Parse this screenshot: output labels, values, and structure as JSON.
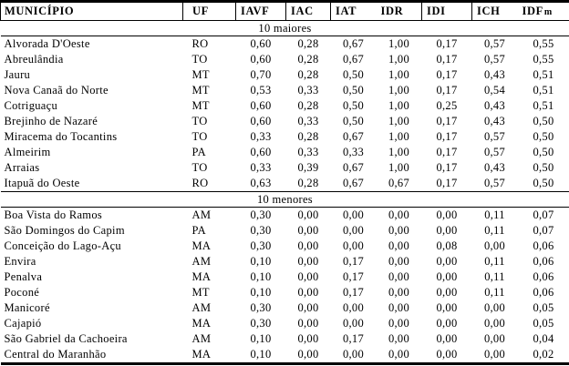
{
  "table": {
    "columns": [
      {
        "label": "MUNICÍPIO"
      },
      {
        "label": "UF"
      },
      {
        "label": "IAVF"
      },
      {
        "label": "IAC"
      },
      {
        "label": "IAT"
      },
      {
        "label": "IDR"
      },
      {
        "label": "IDI"
      },
      {
        "label": "ICH"
      },
      {
        "label": "IDF",
        "sub": "m"
      }
    ],
    "sections": [
      {
        "title": "10 maiores",
        "rows": [
          [
            "Alvorada D'Oeste",
            "RO",
            "0,60",
            "0,28",
            "0,67",
            "1,00",
            "0,17",
            "0,57",
            "0,55"
          ],
          [
            "Abreulândia",
            "TO",
            "0,60",
            "0,28",
            "0,67",
            "1,00",
            "0,17",
            "0,57",
            "0,55"
          ],
          [
            "Jauru",
            "MT",
            "0,70",
            "0,28",
            "0,50",
            "1,00",
            "0,17",
            "0,43",
            "0,51"
          ],
          [
            "Nova Canaã do Norte",
            "MT",
            "0,53",
            "0,33",
            "0,50",
            "1,00",
            "0,17",
            "0,54",
            "0,51"
          ],
          [
            "Cotriguaçu",
            "MT",
            "0,60",
            "0,28",
            "0,50",
            "1,00",
            "0,25",
            "0,43",
            "0,51"
          ],
          [
            "Brejinho de Nazaré",
            "TO",
            "0,60",
            "0,33",
            "0,50",
            "1,00",
            "0,17",
            "0,43",
            "0,50"
          ],
          [
            "Miracema do Tocantins",
            "TO",
            "0,33",
            "0,28",
            "0,67",
            "1,00",
            "0,17",
            "0,57",
            "0,50"
          ],
          [
            "Almeirim",
            "PA",
            "0,60",
            "0,33",
            "0,33",
            "1,00",
            "0,17",
            "0,57",
            "0,50"
          ],
          [
            "Arraias",
            "TO",
            "0,33",
            "0,39",
            "0,67",
            "1,00",
            "0,17",
            "0,43",
            "0,50"
          ],
          [
            "Itapuã do Oeste",
            "RO",
            "0,63",
            "0,28",
            "0,67",
            "0,67",
            "0,17",
            "0,57",
            "0,50"
          ]
        ]
      },
      {
        "title": "10 menores",
        "rows": [
          [
            "Boa Vista do Ramos",
            "AM",
            "0,30",
            "0,00",
            "0,00",
            "0,00",
            "0,00",
            "0,11",
            "0,07"
          ],
          [
            "São Domingos do Capim",
            "PA",
            "0,30",
            "0,00",
            "0,00",
            "0,00",
            "0,00",
            "0,11",
            "0,07"
          ],
          [
            "Conceição do Lago-Açu",
            "MA",
            "0,30",
            "0,00",
            "0,00",
            "0,00",
            "0,08",
            "0,00",
            "0,06"
          ],
          [
            "Envira",
            "AM",
            "0,10",
            "0,00",
            "0,17",
            "0,00",
            "0,00",
            "0,11",
            "0,06"
          ],
          [
            "Penalva",
            "MA",
            "0,10",
            "0,00",
            "0,17",
            "0,00",
            "0,00",
            "0,11",
            "0,06"
          ],
          [
            "Poconé",
            "MT",
            "0,10",
            "0,00",
            "0,17",
            "0,00",
            "0,00",
            "0,11",
            "0,06"
          ],
          [
            "Manicoré",
            "AM",
            "0,30",
            "0,00",
            "0,00",
            "0,00",
            "0,00",
            "0,00",
            "0,05"
          ],
          [
            "Cajapió",
            "MA",
            "0,30",
            "0,00",
            "0,00",
            "0,00",
            "0,00",
            "0,00",
            "0,05"
          ],
          [
            "São Gabriel da Cachoeira",
            "AM",
            "0,10",
            "0,00",
            "0,17",
            "0,00",
            "0,00",
            "0,00",
            "0,04"
          ],
          [
            "Central do Maranhão",
            "MA",
            "0,10",
            "0,00",
            "0,00",
            "0,00",
            "0,00",
            "0,00",
            "0,02"
          ]
        ]
      }
    ]
  }
}
